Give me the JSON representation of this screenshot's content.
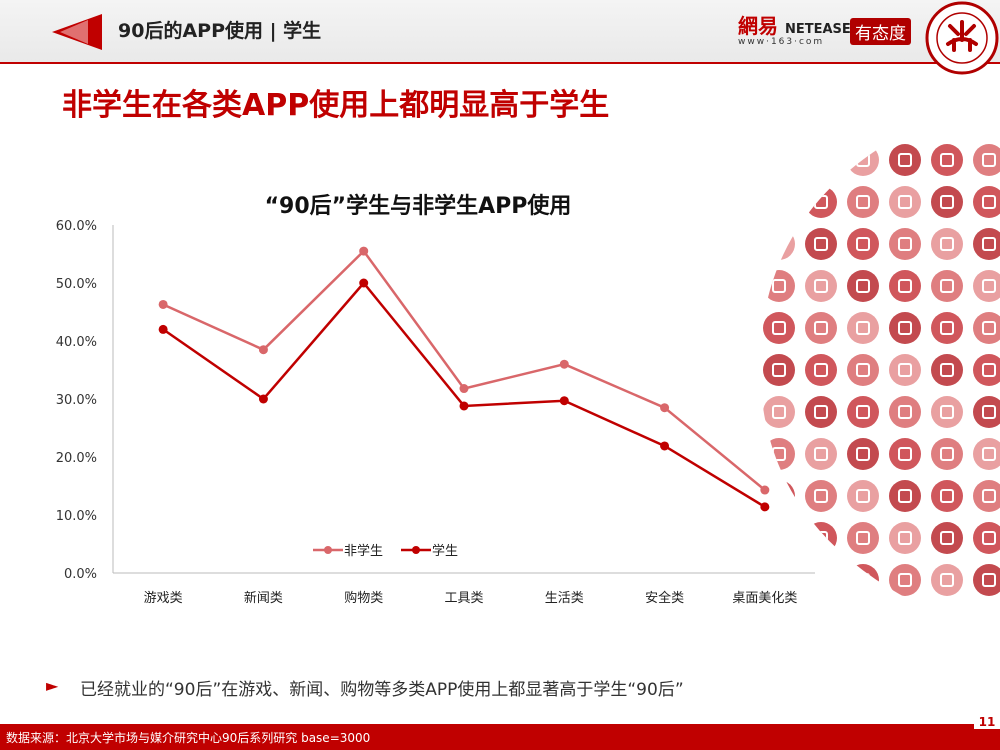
{
  "header": {
    "title": "90后的APP使用 | 学生",
    "netease_brand": "網易",
    "netease_latin": "NETEASE",
    "netease_url": "www·163·com",
    "youtaidu": "有态度"
  },
  "main_heading": "非学生在各类APP使用上都明显高于学生",
  "chart_data": {
    "type": "line",
    "title": "“90后”学生与非学生APP使用",
    "categories": [
      "游戏类",
      "新闻类",
      "购物类",
      "工具类",
      "生活类",
      "安全类",
      "桌面美化类"
    ],
    "series": [
      {
        "name": "非学生",
        "values": [
          46.3,
          38.5,
          55.5,
          31.8,
          36.0,
          28.5,
          14.3
        ],
        "color": "#d9676a"
      },
      {
        "name": "学生",
        "values": [
          42.0,
          30.0,
          50.0,
          28.8,
          29.7,
          21.9,
          11.4
        ],
        "color": "#c00000"
      }
    ],
    "ylim": [
      0,
      60
    ],
    "yticks": [
      "0.0%",
      "10.0%",
      "20.0%",
      "30.0%",
      "40.0%",
      "50.0%",
      "60.0%"
    ],
    "legend": "bottom",
    "grid": false
  },
  "bullet_text": "已经就业的“90后”在游戏、新闻、购物等多类APP使用上都显著高于学生“90后”",
  "footer_text": "数据来源：北京大学市场与媒介研究中心90后系列研究 base=3000",
  "page_number": "11"
}
